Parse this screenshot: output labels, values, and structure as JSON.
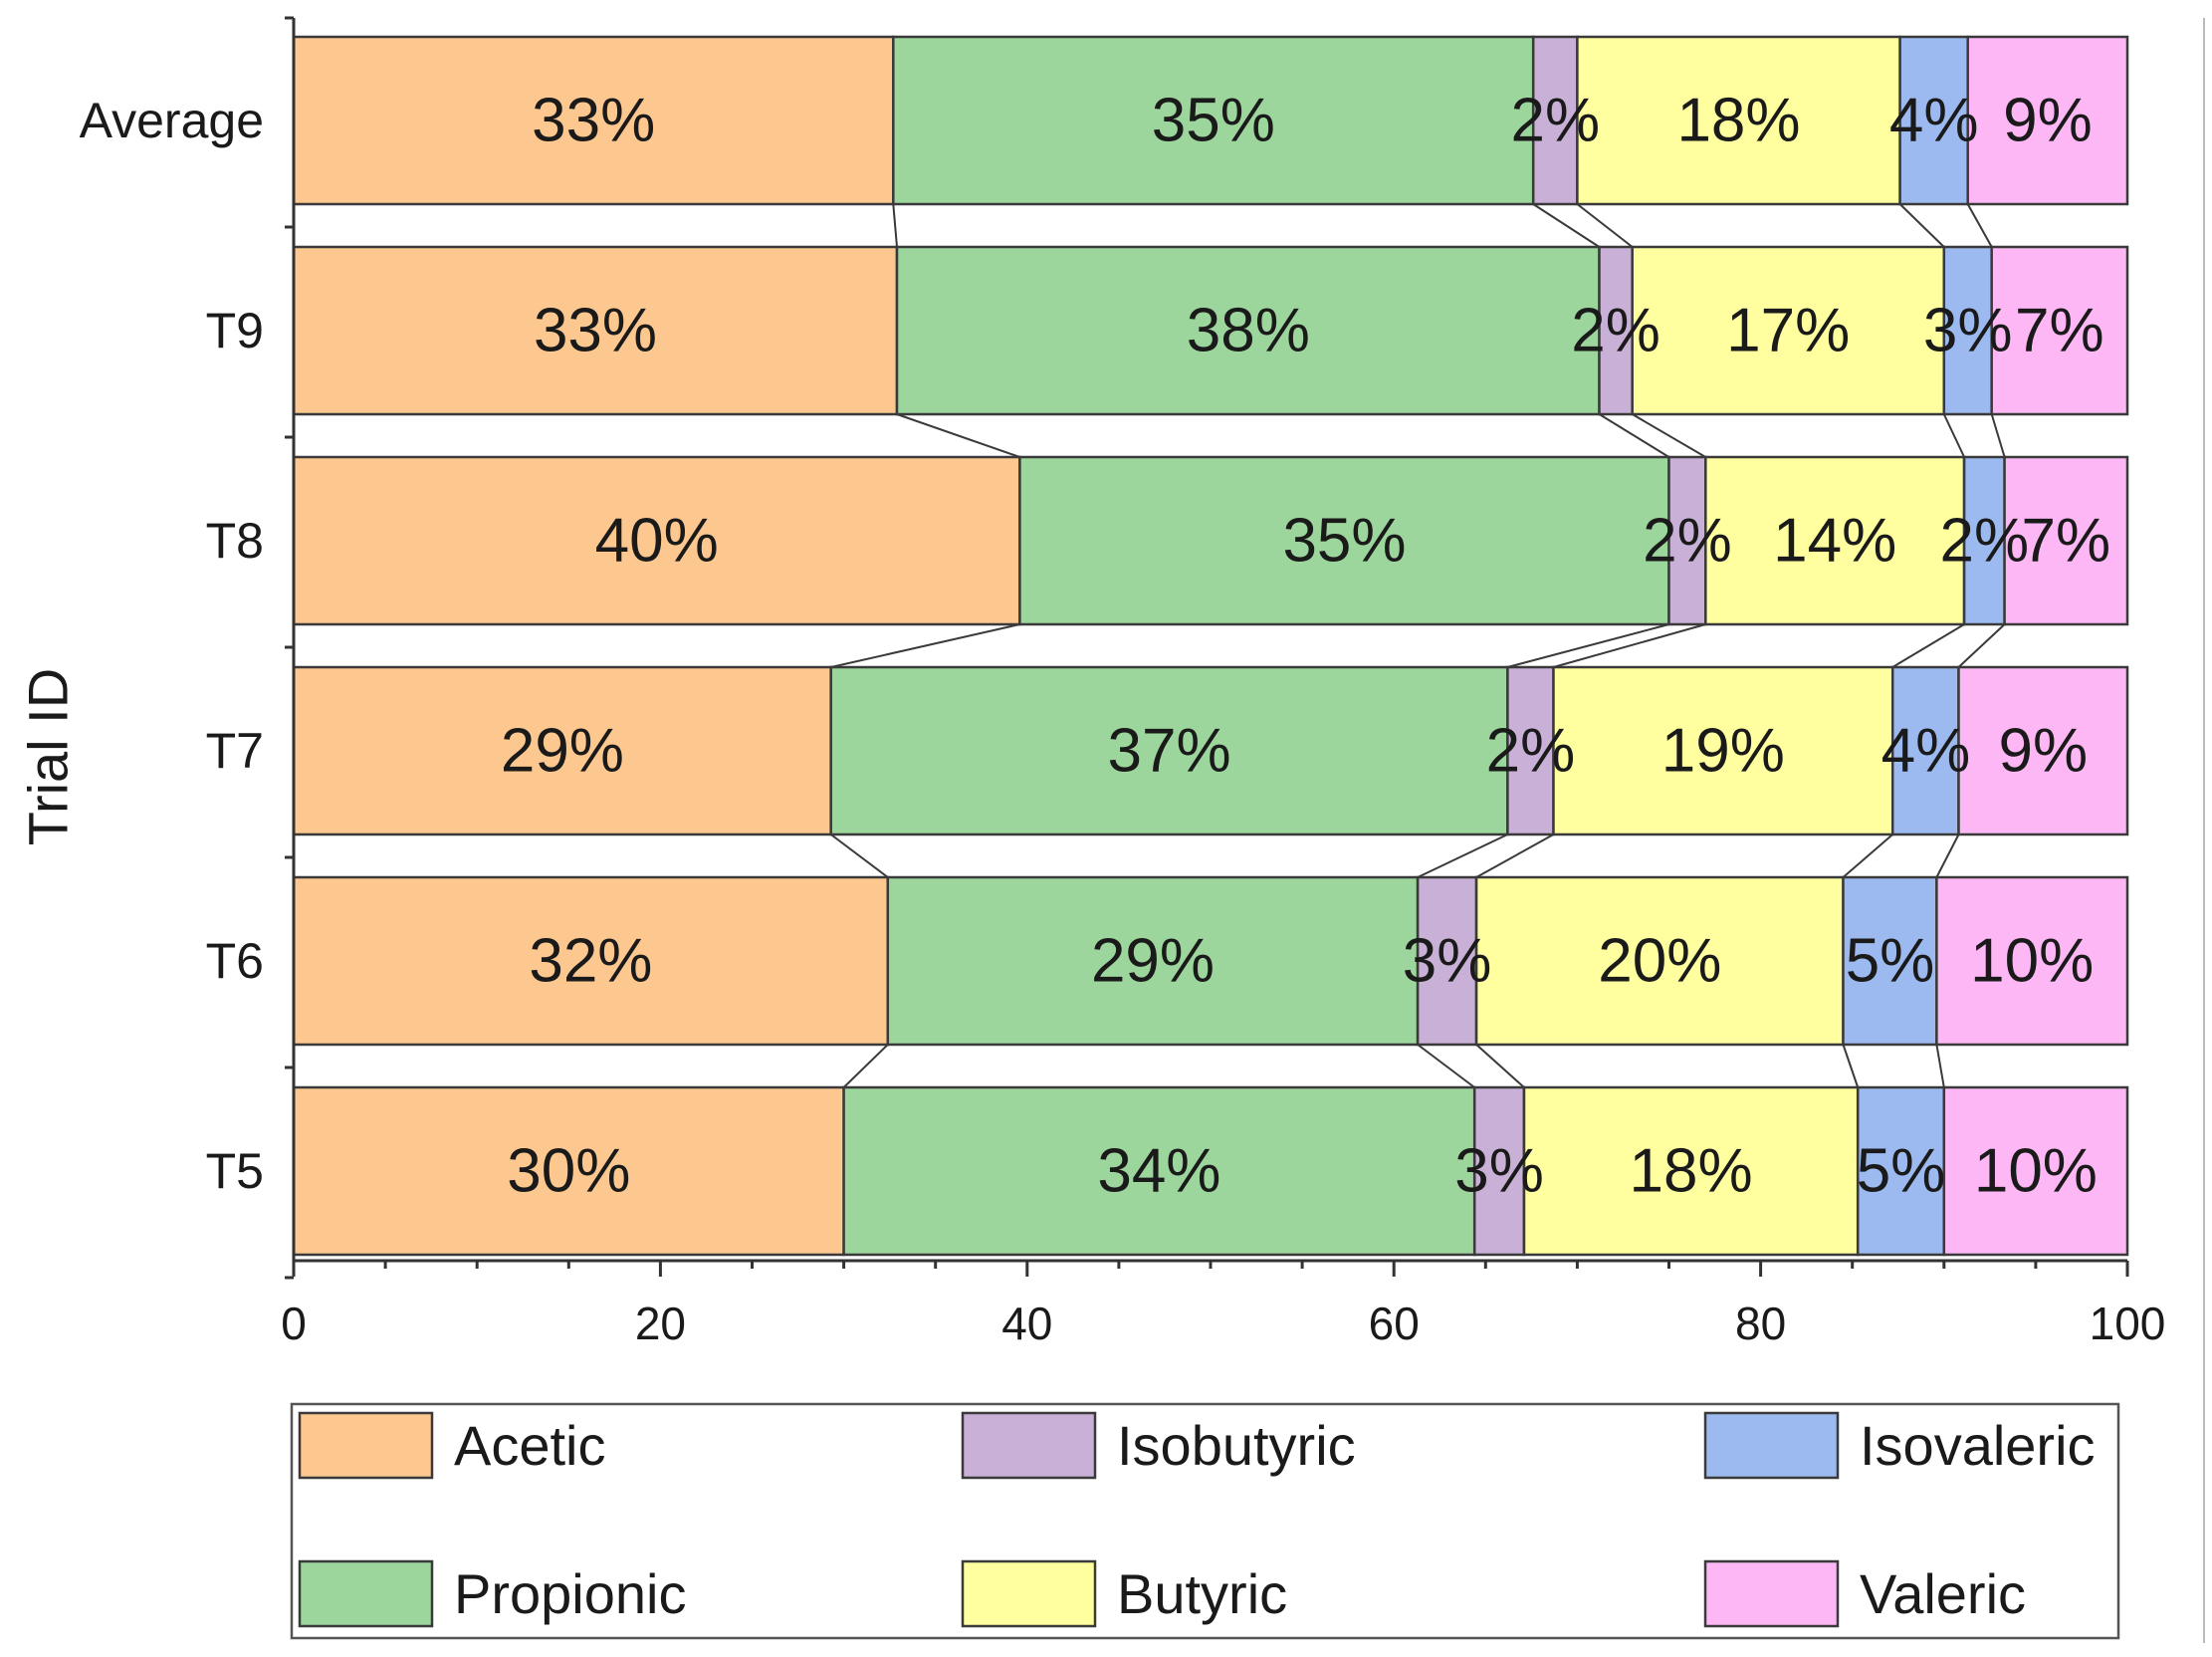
{
  "chart_data": {
    "type": "bar",
    "orientation": "horizontal",
    "stacked": true,
    "title": "",
    "xlabel": "",
    "ylabel": "Trial ID",
    "xlim": [
      0,
      100
    ],
    "x_ticks": [
      "0",
      "20",
      "40",
      "60",
      "80",
      "100"
    ],
    "categories": [
      "Average",
      "T9",
      "T8",
      "T7",
      "T6",
      "T5"
    ],
    "series": [
      {
        "name": "Acetic",
        "color": "#fcc88f",
        "values": [
          32.7,
          32.9,
          39.6,
          29.3,
          32.4,
          30.0
        ],
        "labels": [
          "33%",
          "33%",
          "40%",
          "29%",
          "32%",
          "30%"
        ]
      },
      {
        "name": "Propionic",
        "color": "#9dd69c",
        "values": [
          34.9,
          38.3,
          35.4,
          36.9,
          28.9,
          34.4
        ],
        "labels": [
          "35%",
          "38%",
          "35%",
          "37%",
          "29%",
          "34%"
        ]
      },
      {
        "name": "Isobutyric",
        "color": "#c8b0d6",
        "values": [
          2.4,
          1.8,
          2.0,
          2.5,
          3.2,
          2.7
        ],
        "labels": [
          "2%",
          "2%",
          "2%",
          "2%",
          "3%",
          "3%"
        ]
      },
      {
        "name": "Butyric",
        "color": "#ffffa0",
        "values": [
          17.6,
          17.0,
          14.1,
          18.5,
          20.0,
          18.2
        ],
        "labels": [
          "18%",
          "17%",
          "14%",
          "19%",
          "20%",
          "18%"
        ]
      },
      {
        "name": "Isovaleric",
        "color": "#9dbaf0",
        "values": [
          3.7,
          2.6,
          2.2,
          3.6,
          5.1,
          4.7
        ],
        "labels": [
          "4%",
          "3%",
          "2%",
          "4%",
          "5%",
          "5%"
        ]
      },
      {
        "name": "Valeric",
        "color": "#fdb7f4",
        "values": [
          8.7,
          7.4,
          6.7,
          9.2,
          10.4,
          10.0
        ],
        "labels": [
          "9%",
          "7%",
          "7%",
          "9%",
          "10%",
          "10%"
        ]
      }
    ],
    "legend": {
      "position": "bottom",
      "columns": 3,
      "order": [
        "Acetic",
        "Isobutyric",
        "Isovaleric",
        "Propionic",
        "Butyric",
        "Valeric"
      ]
    },
    "connector_lines": true,
    "grid": false
  }
}
